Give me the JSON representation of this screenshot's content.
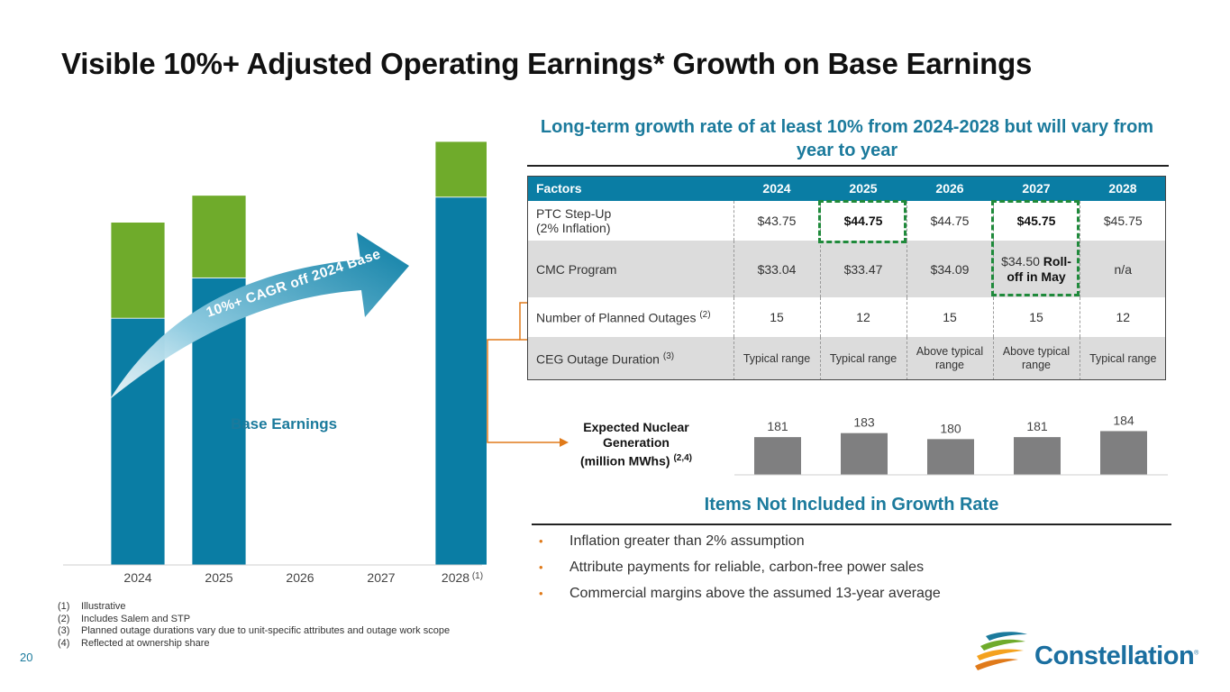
{
  "header": {
    "title": "Visible 10%+ Adjusted Operating Earnings* Growth on Base Earnings",
    "subtitle": "Long-term growth rate of at least 10% from 2024-2028 but will vary from year to year"
  },
  "colors": {
    "teal": "#0a7da4",
    "green": "#6fab2b",
    "gray_bar": "#7f7f80",
    "accent_text": "#1b7a9c",
    "orange": "#e07a1a",
    "highlight": "#1f8a3b"
  },
  "chart_data": [
    {
      "type": "bar",
      "stacked": true,
      "illustrative": true,
      "categories": [
        "2024",
        "2025",
        "2026",
        "2027",
        "2028"
      ],
      "category_notes": [
        "",
        "",
        "",
        "",
        "(1)"
      ],
      "series": [
        {
          "name": "Base Earnings",
          "values": [
            275,
            320,
            null,
            null,
            410
          ]
        },
        {
          "name": "",
          "values": [
            107,
            92,
            null,
            null,
            62
          ]
        }
      ],
      "ylim": [
        0,
        472
      ],
      "annotation": "10%+ CAGR off 2024 Base",
      "series_label": "Base Earnings"
    },
    {
      "type": "bar",
      "label_lines": [
        "Expected Nuclear",
        "Generation",
        "(million MWhs)"
      ],
      "label_superscript": "(2,4)",
      "categories": [
        "2024",
        "2025",
        "2026",
        "2027",
        "2028"
      ],
      "values": [
        181,
        183,
        180,
        181,
        184
      ],
      "ylim": [
        150,
        186
      ]
    }
  ],
  "table": {
    "header": [
      "Factors",
      "2024",
      "2025",
      "2026",
      "2027",
      "2028"
    ],
    "rows": [
      {
        "label": "PTC Step-Up",
        "label2": "(2% Inflation)",
        "cells": [
          "$43.75",
          "$44.75",
          "$44.75",
          "$45.75",
          "$45.75"
        ]
      },
      {
        "label": "CMC Program",
        "cells": [
          "$33.04",
          "$33.47",
          "$34.09",
          "",
          "n/a"
        ],
        "c2027_a": "$34.50 ",
        "c2027_b": "Roll-",
        "c2027_c": "off in May"
      },
      {
        "label": "Number of Planned Outages",
        "note": "(2)",
        "cells": [
          "15",
          "12",
          "15",
          "15",
          "12"
        ]
      },
      {
        "label": "CEG Outage Duration",
        "note": "(3)",
        "cells": [
          "Typical range",
          "Typical range",
          "Above typical range",
          "Above typical range",
          "Typical range"
        ]
      }
    ]
  },
  "items": {
    "title": "Items Not Included in Growth Rate",
    "list": [
      "Inflation greater than 2% assumption",
      "Attribute payments for reliable, carbon-free power sales",
      "Commercial margins above the assumed 13-year average"
    ]
  },
  "footnotes": [
    {
      "num": "(1)",
      "text": "Illustrative"
    },
    {
      "num": "(2)",
      "text": "Includes Salem and STP"
    },
    {
      "num": "(3)",
      "text": "Planned outage durations vary due to unit-specific attributes and outage work scope"
    },
    {
      "num": "(4)",
      "text": "Reflected at ownership share"
    }
  ],
  "page_number": "20",
  "logo": {
    "name": "Constellation",
    "mark": "®",
    "icon": "constellation-swoosh-icon"
  }
}
